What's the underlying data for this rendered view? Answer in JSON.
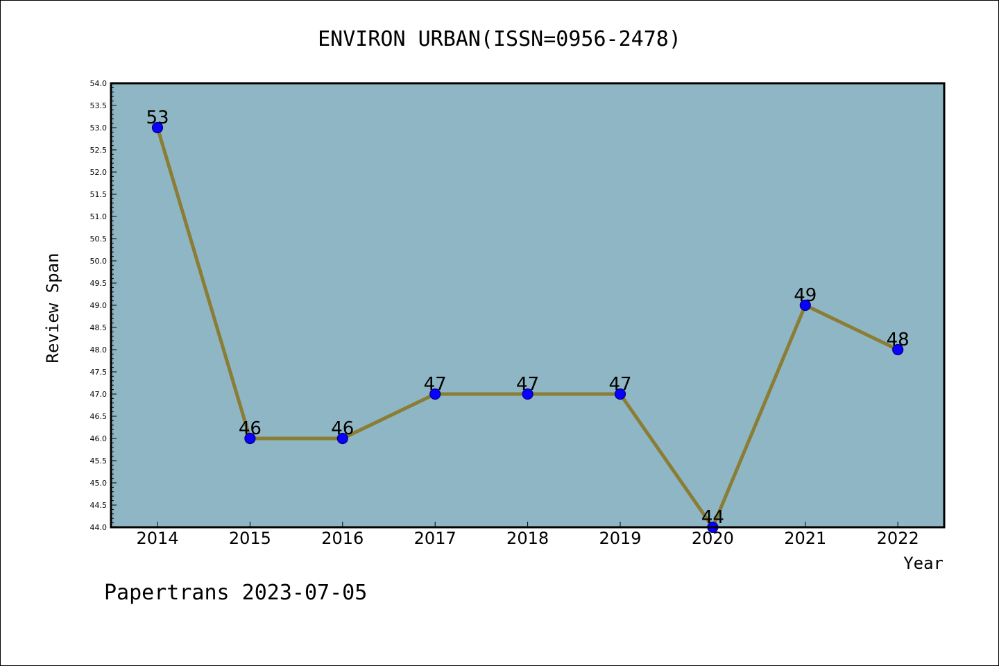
{
  "chart_data": {
    "type": "line",
    "title": "ENVIRON URBAN(ISSN=0956-2478)",
    "xlabel": "Year",
    "ylabel": "Review Span",
    "categories": [
      "2014",
      "2015",
      "2016",
      "2017",
      "2018",
      "2019",
      "2020",
      "2021",
      "2022"
    ],
    "values": [
      53,
      46,
      46,
      47,
      47,
      47,
      44,
      49,
      48
    ],
    "data_labels": [
      "53",
      "46",
      "46",
      "47",
      "47",
      "47",
      "44",
      "49",
      "48"
    ],
    "ylim": [
      44.0,
      54.0
    ],
    "yticks": [
      "44.0",
      "44.5",
      "45.0",
      "45.5",
      "46.0",
      "46.5",
      "47.0",
      "47.5",
      "48.0",
      "48.5",
      "49.0",
      "49.5",
      "50.0",
      "50.5",
      "51.0",
      "51.5",
      "52.0",
      "52.5",
      "53.0",
      "53.5",
      "54.0"
    ],
    "grid": false,
    "colors": {
      "plot_background": "#8fb6c4",
      "line": "#8a7d35",
      "marker_fill": "#0a00ff",
      "marker_edge": "#000080"
    }
  },
  "footer": "Papertrans 2023-07-05"
}
